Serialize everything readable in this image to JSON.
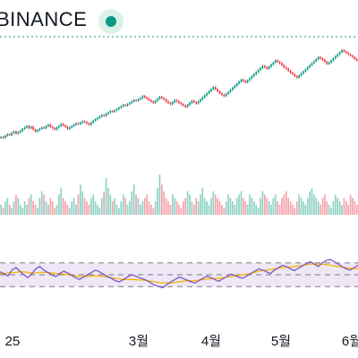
{
  "header": {
    "exchange": "BINANCE",
    "status_color": "#089981"
  },
  "colors": {
    "up": "#089981",
    "down": "#f23645",
    "up_volume": "#8fd1c5",
    "down_volume": "#f5a3aa",
    "rsi_line": "#7e57c2",
    "rsi_ma": "#f7b500",
    "rsi_band": "#ede7f6"
  },
  "chart_data": [
    {
      "type": "candlestick",
      "x_axis_labels": [
        "25",
        "3월",
        "4월",
        "5월",
        "6월"
      ],
      "last_price_line": "dotted",
      "candles_close": [
        58,
        57,
        60,
        62,
        61,
        64,
        66,
        63,
        65,
        67,
        70,
        72,
        74,
        71,
        73,
        69,
        66,
        68,
        70,
        72,
        71,
        74,
        76,
        73,
        71,
        69,
        72,
        74,
        77,
        75,
        73,
        70,
        72,
        74,
        76,
        78,
        77,
        79,
        81,
        80,
        78,
        76,
        79,
        82,
        84,
        86,
        88,
        90,
        89,
        92,
        94,
        96,
        95,
        97,
        99,
        101,
        103,
        105,
        104,
        106,
        108,
        110,
        112,
        111,
        113,
        115,
        118,
        116,
        114,
        112,
        110,
        108,
        111,
        114,
        117,
        115,
        113,
        110,
        108,
        106,
        109,
        112,
        110,
        108,
        106,
        104,
        102,
        105,
        108,
        111,
        109,
        107,
        110,
        113,
        116,
        119,
        122,
        125,
        128,
        131,
        128,
        125,
        122,
        120,
        118,
        121,
        124,
        127,
        130,
        133,
        136,
        139,
        142,
        140,
        138,
        141,
        144,
        147,
        150,
        153,
        156,
        159,
        162,
        160,
        158,
        161,
        164,
        167,
        170,
        168,
        166,
        163,
        160,
        158,
        155,
        152,
        150,
        147,
        145,
        148,
        151,
        154,
        157,
        160,
        163,
        166,
        169,
        172,
        175,
        173,
        171,
        168,
        165,
        167,
        170,
        173,
        176,
        179,
        182,
        185,
        183,
        181,
        179,
        177,
        175,
        172,
        170
      ],
      "volume": [
        3,
        2,
        4,
        5,
        3,
        2,
        4,
        6,
        5,
        3,
        2,
        4,
        3,
        5,
        6,
        4,
        3,
        2,
        5,
        7,
        6,
        4,
        3,
        5,
        4,
        2,
        3,
        6,
        8,
        5,
        4,
        3,
        2,
        4,
        5,
        3,
        6,
        9,
        7,
        5,
        4,
        3,
        5,
        6,
        4,
        3,
        2,
        5,
        7,
        11,
        8,
        6,
        4,
        5,
        3,
        2,
        4,
        6,
        5,
        3,
        4,
        7,
        9,
        6,
        5,
        3,
        4,
        5,
        6,
        4,
        3,
        2,
        4,
        8,
        12,
        9,
        7,
        5,
        4,
        3,
        6,
        5,
        4,
        3,
        2,
        4,
        5,
        7,
        6,
        4,
        3,
        5,
        4,
        6,
        8,
        5,
        4,
        3,
        5,
        7,
        6,
        5,
        4,
        3,
        2,
        4,
        6,
        5,
        4,
        3,
        5,
        6,
        7,
        5,
        4,
        3,
        6,
        5,
        4,
        3,
        2,
        5,
        7,
        6,
        5,
        4,
        3,
        5,
        6,
        4,
        3,
        5,
        6,
        7,
        5,
        4,
        3,
        2,
        4,
        6,
        5,
        4,
        3,
        5,
        7,
        8,
        6,
        5,
        4,
        3,
        5,
        6,
        4,
        3,
        2,
        4,
        6,
        5,
        4,
        3,
        5,
        4,
        3,
        6,
        5,
        4,
        3
      ],
      "note": "values are approximate relative price/volume levels read from the chart; no y-axis is shown"
    },
    {
      "type": "line",
      "name": "RSI",
      "band": [
        30,
        70
      ],
      "levels": [
        30,
        50,
        70
      ],
      "series_rsi": [
        55,
        52,
        48,
        58,
        62,
        56,
        50,
        45,
        52,
        60,
        64,
        58,
        54,
        50,
        47,
        52,
        56,
        53,
        49,
        45,
        42,
        46,
        50,
        54,
        58,
        55,
        51,
        47,
        44,
        40,
        38,
        42,
        46,
        50,
        48,
        45,
        43,
        40,
        36,
        32,
        30,
        28,
        34,
        38,
        42,
        46,
        44,
        41,
        38,
        36,
        40,
        44,
        48,
        45,
        42,
        39,
        43,
        47,
        51,
        49,
        46,
        44,
        48,
        52,
        56,
        60,
        58,
        55,
        52,
        58,
        62,
        66,
        64,
        60,
        57,
        61,
        65,
        69,
        72,
        68,
        64,
        70,
        74,
        76,
        72,
        68,
        64,
        60,
        58,
        62,
        66
      ],
      "series_ma": [
        52,
        52,
        53,
        54,
        54,
        55,
        55,
        54,
        53,
        53,
        54,
        54,
        54,
        53,
        52,
        52,
        51,
        50,
        49,
        48,
        47,
        47,
        47,
        48,
        48,
        48,
        47,
        46,
        45,
        44,
        43,
        42,
        42,
        42,
        42,
        41,
        41,
        40,
        39,
        38,
        37,
        36,
        36,
        36,
        37,
        38,
        39,
        40,
        40,
        40,
        41,
        42,
        43,
        43,
        44,
        44,
        45,
        46,
        47,
        48,
        49,
        50,
        51,
        52,
        54,
        56,
        57,
        58,
        59,
        60,
        61,
        62,
        63,
        63,
        64,
        65,
        66,
        67,
        68,
        68,
        68,
        68,
        67,
        66,
        65,
        64,
        63,
        62,
        61,
        60,
        60
      ]
    }
  ]
}
